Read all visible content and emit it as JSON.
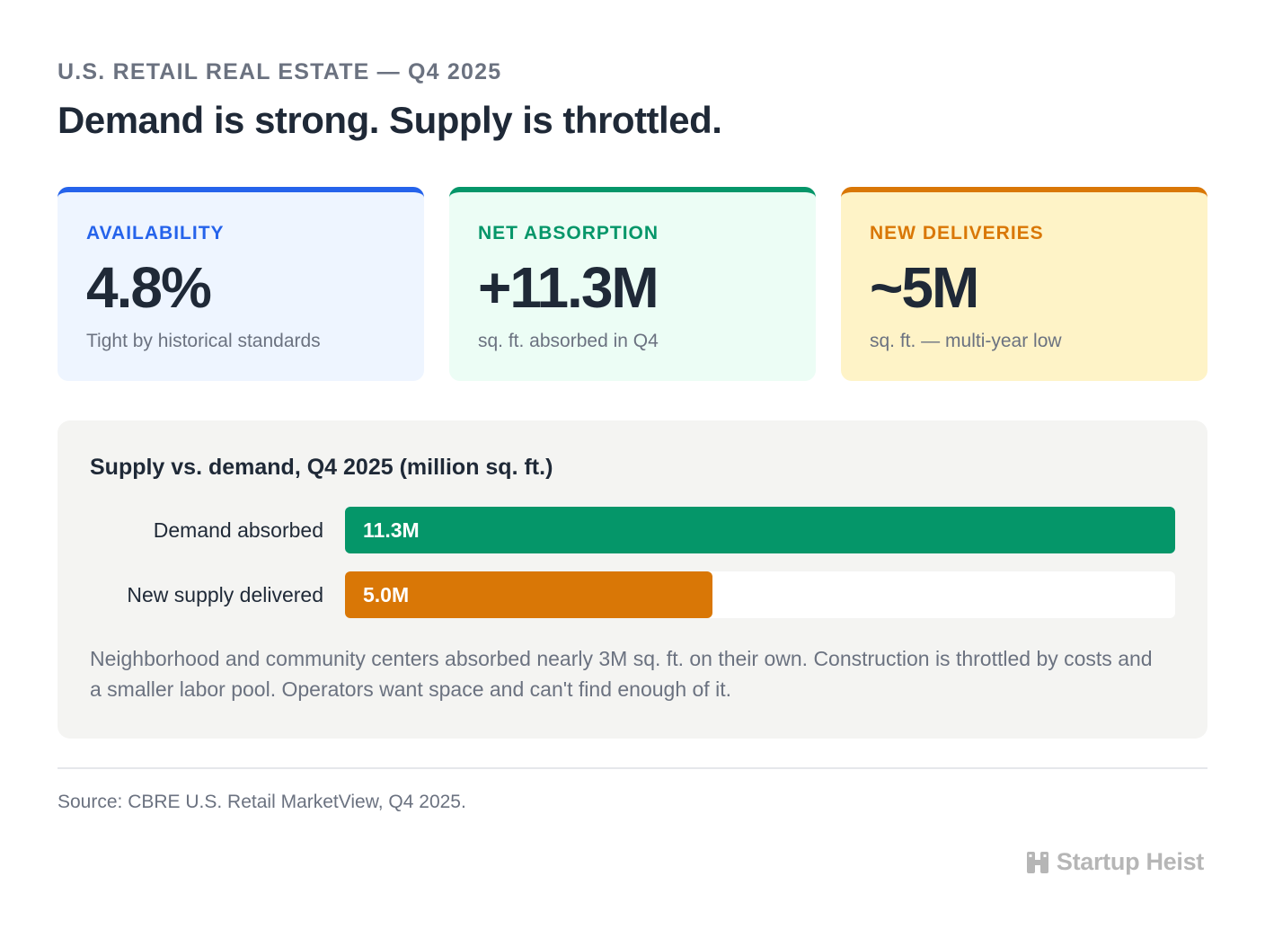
{
  "header": {
    "eyebrow": "U.S. RETAIL REAL ESTATE — Q4 2025",
    "headline": "Demand is strong. Supply is throttled."
  },
  "cards": [
    {
      "label": "AVAILABILITY",
      "value": "4.8%",
      "sub": "Tight by historical standards",
      "accent": "#2563eb",
      "bg": "#eef5ff"
    },
    {
      "label": "NET ABSORPTION",
      "value": "+11.3M",
      "sub": "sq. ft. absorbed in Q4",
      "accent": "#059669",
      "bg": "#ecfdf5"
    },
    {
      "label": "NEW DELIVERIES",
      "value": "~5M",
      "sub": "sq. ft. — multi-year low",
      "accent": "#d97706",
      "bg": "#fef3c7"
    }
  ],
  "chart_data": {
    "type": "bar",
    "orientation": "horizontal",
    "title": "Supply vs. demand, Q4 2025 (million sq. ft.)",
    "categories": [
      "Demand absorbed",
      "New supply delivered"
    ],
    "values": [
      11.3,
      5.0
    ],
    "value_labels": [
      "11.3M",
      "5.0M"
    ],
    "colors": [
      "#059669",
      "#d97706"
    ],
    "xlim": [
      0,
      11.3
    ],
    "grid": false,
    "note": "Neighborhood and community centers absorbed nearly 3M sq. ft. on their own. Construction is throttled by costs and a smaller labor pool. Operators want space and can't find enough of it."
  },
  "footer": {
    "source": "Source: CBRE U.S. Retail MarketView, Q4 2025.",
    "brand": "Startup Heist",
    "brand_icon": "building-icon"
  }
}
